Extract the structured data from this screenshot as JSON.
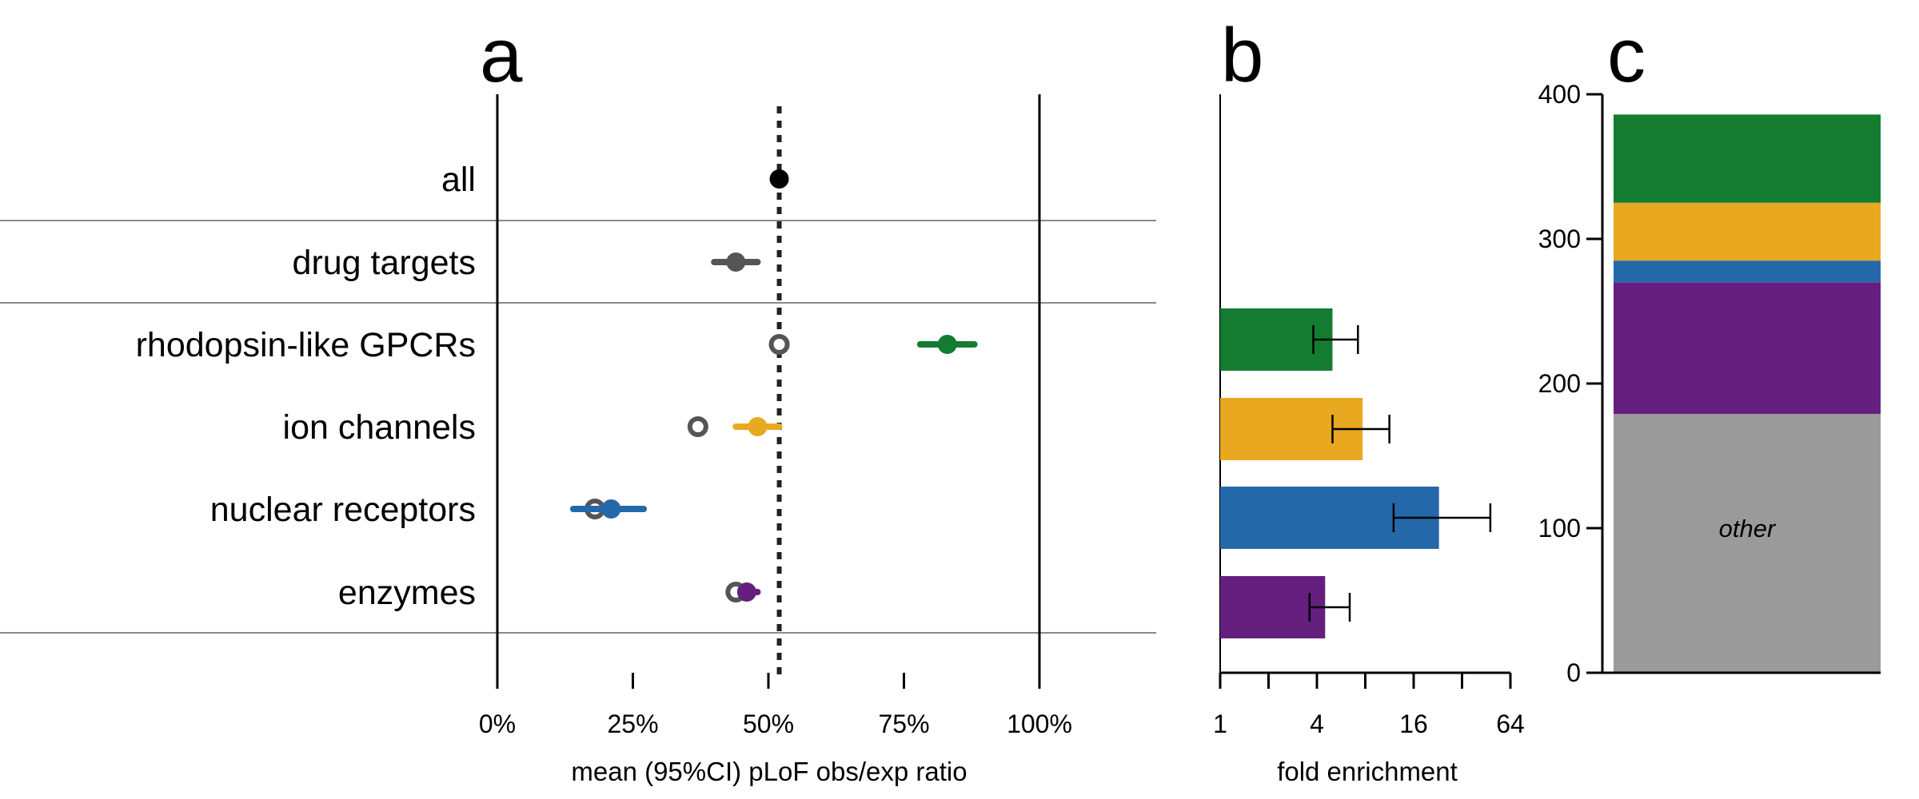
{
  "chart_data": [
    {
      "panel": "a",
      "type": "scatter",
      "xlabel": "mean (95%CI) pLoF obs/exp ratio",
      "x_ticks": [
        "0%",
        "25%",
        "50%",
        "75%",
        "100%"
      ],
      "xlim": [
        0,
        1.22
      ],
      "reference_line": 0.52,
      "categories": [
        "all",
        "drug targets",
        "rhodopsin-like GPCRs",
        "ion channels",
        "nuclear receptors",
        "enzymes"
      ],
      "points": [
        {
          "category": "all",
          "mean": 0.52,
          "ci": [
            0.515,
            0.525
          ],
          "color": "#000000",
          "baseline": null
        },
        {
          "category": "drug targets",
          "mean": 0.44,
          "ci": [
            0.4,
            0.48
          ],
          "color": "#555555",
          "baseline": null
        },
        {
          "category": "rhodopsin-like GPCRs",
          "mean": 0.83,
          "ci": [
            0.78,
            0.88
          ],
          "color": "#137c31",
          "baseline": 0.52
        },
        {
          "category": "ion channels",
          "mean": 0.48,
          "ci": [
            0.44,
            0.52
          ],
          "color": "#e8a81f",
          "baseline": 0.37
        },
        {
          "category": "nuclear receptors",
          "mean": 0.21,
          "ci": [
            0.14,
            0.27
          ],
          "color": "#2568aa",
          "baseline": 0.18
        },
        {
          "category": "enzymes",
          "mean": 0.46,
          "ci": [
            0.45,
            0.48
          ],
          "color": "#651f7f",
          "baseline": 0.44
        }
      ]
    },
    {
      "panel": "b",
      "type": "bar",
      "orientation": "horizontal",
      "xlabel": "fold enrichment",
      "x_scale": "log2",
      "x_ticks": [
        "1",
        "4",
        "16",
        "64"
      ],
      "xlim": [
        1,
        64
      ],
      "categories": [
        "rhodopsin-like GPCRs",
        "ion channels",
        "nuclear receptors",
        "enzymes"
      ],
      "values": [
        5.0,
        7.7,
        23.0,
        4.5
      ],
      "ci": [
        [
          3.8,
          7.2
        ],
        [
          5.0,
          11.3
        ],
        [
          12.0,
          48.0
        ],
        [
          3.6,
          6.4
        ]
      ],
      "colors": [
        "#137c31",
        "#e8a81f",
        "#2568aa",
        "#651f7f"
      ]
    },
    {
      "panel": "c",
      "type": "bar",
      "stacked": true,
      "y_ticks": [
        "0",
        "100",
        "200",
        "300",
        "400"
      ],
      "ylim": [
        0,
        400
      ],
      "segments": [
        {
          "label": "other",
          "value": 179,
          "color": "#9a9a9a"
        },
        {
          "label": "",
          "value": 91,
          "color": "#651f7f"
        },
        {
          "label": "",
          "value": 15,
          "color": "#2568aa"
        },
        {
          "label": "",
          "value": 40,
          "color": "#e8a81f"
        },
        {
          "label": "",
          "value": 61,
          "color": "#137c31"
        }
      ]
    }
  ],
  "panel_letters": [
    "a",
    "b",
    "c"
  ]
}
